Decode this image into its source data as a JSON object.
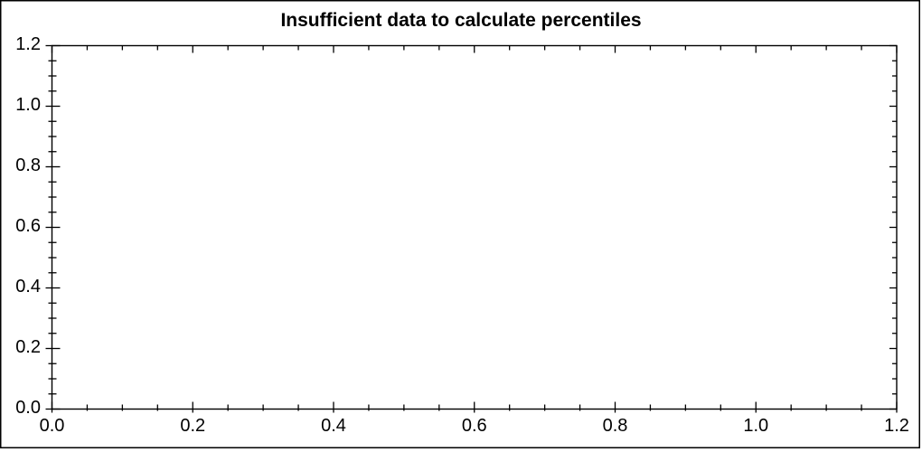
{
  "page": {
    "background_color": "#ffffff",
    "border_color": "#000000"
  },
  "chart_data": {
    "type": "scatter",
    "title": "Insufficient data to calculate percentiles",
    "series": [],
    "xlabel": "",
    "ylabel": "",
    "xlim": [
      0.0,
      1.2
    ],
    "ylim": [
      0.0,
      1.2
    ],
    "x_major_ticks": [
      0.0,
      0.2,
      0.4,
      0.6,
      0.8,
      1.0,
      1.2
    ],
    "y_major_ticks": [
      0.0,
      0.2,
      0.4,
      0.6,
      0.8,
      1.0,
      1.2
    ],
    "x_tick_labels": [
      "0.0",
      "0.2",
      "0.4",
      "0.6",
      "0.8",
      "1.0",
      "1.2"
    ],
    "y_tick_labels": [
      "0.0",
      "0.2",
      "0.4",
      "0.6",
      "0.8",
      "1.0",
      "1.2"
    ],
    "minor_tick_interval": 0.05,
    "grid": false,
    "legend": null,
    "axis_color": "#000000",
    "text_color": "#000000",
    "plot_background_color": "#ffffff",
    "tick_style": "crossing ticks on left/bottom axes, inward ticks on top/right axes"
  }
}
